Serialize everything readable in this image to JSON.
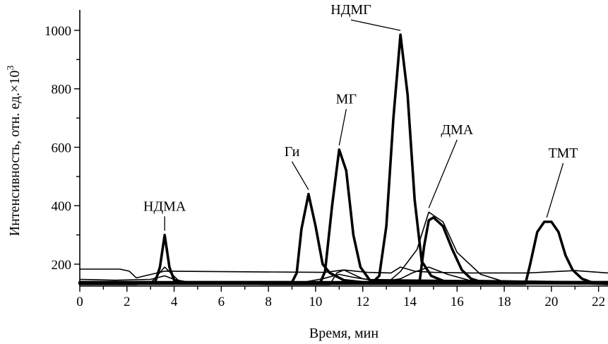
{
  "chart_data": {
    "type": "line",
    "title": "",
    "xlabel": "Время, мин",
    "ylabel": "Интенсивность, отн. ед.×10",
    "ylabel_superscript": "3",
    "xlim": [
      0,
      22.4
    ],
    "ylim": [
      125,
      1070
    ],
    "x_ticks": [
      0,
      2,
      4,
      6,
      8,
      10,
      12,
      14,
      16,
      18,
      20,
      22
    ],
    "x_tick_labels": [
      "0",
      "2",
      "4",
      "6",
      "8",
      "10",
      "12",
      "14",
      "16",
      "18",
      "20",
      "22"
    ],
    "y_ticks": [
      200,
      400,
      600,
      800,
      1000
    ],
    "y_tick_labels": [
      "200",
      "400",
      "600",
      "800",
      "1000"
    ],
    "grid": false,
    "legend": "none",
    "series": [
      {
        "x": [
          0,
          1.7,
          2.1,
          2.4,
          3.6,
          10.4,
          11.2,
          12.2,
          13.2,
          13.6,
          14.2,
          15.0,
          16.5,
          19.0,
          21.0,
          22.4
        ],
        "y": [
          183,
          183,
          176,
          153,
          176,
          172,
          180,
          172,
          170,
          190,
          176,
          172,
          170,
          170,
          178,
          170
        ],
        "weight": "thin"
      },
      {
        "x": [
          0,
          2.4,
          3.0,
          3.6,
          4.3,
          8.0,
          10.6,
          10.9,
          11.2,
          12.0,
          13.1,
          13.6,
          14.3,
          14.8,
          15.4,
          16.0,
          17.0,
          18.0,
          22.4
        ],
        "y": [
          130,
          130,
          135,
          190,
          135,
          130,
          130,
          170,
          180,
          150,
          140,
          175,
          250,
          378,
          345,
          240,
          165,
          140,
          130
        ],
        "weight": "thin"
      },
      {
        "x": [
          0,
          1.5,
          3.0,
          3.6,
          4.0,
          4.5,
          9.0,
          9.6,
          10.3,
          11.0,
          11.6,
          12.4,
          13.2,
          13.6,
          14.1,
          14.8,
          15.6,
          16.5,
          22.4
        ],
        "y": [
          148,
          145,
          148,
          160,
          148,
          140,
          140,
          140,
          150,
          165,
          155,
          145,
          145,
          150,
          170,
          190,
          165,
          145,
          138
        ],
        "weight": "thin"
      },
      {
        "x": [
          0,
          3.0,
          3.2,
          3.4,
          3.6,
          3.8,
          4.0,
          4.3,
          22.4
        ],
        "y": [
          138,
          138,
          140,
          190,
          300,
          190,
          145,
          138,
          138
        ],
        "weight": "bold"
      },
      {
        "x": [
          0,
          9.0,
          9.2,
          9.4,
          9.7,
          10.0,
          10.3,
          10.6,
          11.2,
          12.0,
          22.4
        ],
        "y": [
          138,
          138,
          170,
          320,
          440,
          330,
          200,
          170,
          145,
          138,
          138
        ],
        "weight": "bold"
      },
      {
        "x": [
          0,
          10.2,
          10.4,
          10.7,
          11.0,
          11.3,
          11.6,
          11.9,
          12.3,
          22.4
        ],
        "y": [
          137,
          137,
          175,
          400,
          592,
          520,
          300,
          190,
          145,
          137
        ],
        "weight": "bold"
      },
      {
        "x": [
          0,
          12.4,
          12.7,
          13.0,
          13.3,
          13.6,
          13.9,
          14.2,
          14.5,
          14.9,
          15.5,
          16.0,
          22.4
        ],
        "y": [
          136,
          136,
          160,
          330,
          700,
          985,
          780,
          420,
          210,
          160,
          140,
          136,
          136
        ],
        "weight": "bold"
      },
      {
        "x": [
          0,
          14.4,
          14.6,
          14.8,
          15.0,
          15.4,
          15.8,
          16.2,
          16.6,
          17.0,
          17.5,
          22.4
        ],
        "y": [
          134,
          134,
          260,
          350,
          360,
          330,
          250,
          180,
          150,
          140,
          135,
          134
        ],
        "weight": "bold"
      },
      {
        "x": [
          0,
          18.9,
          19.1,
          19.4,
          19.7,
          20.0,
          20.3,
          20.6,
          20.9,
          21.3,
          21.7,
          22.4
        ],
        "y": [
          133,
          133,
          200,
          310,
          345,
          345,
          310,
          230,
          180,
          150,
          138,
          133
        ],
        "weight": "bold"
      }
    ],
    "annotations": [
      {
        "label": "НДМА",
        "x": 3.6,
        "y": 300,
        "label_x": 3.6,
        "label_y": 383
      },
      {
        "label": "Ги",
        "x": 9.7,
        "y": 440,
        "label_x": 9.0,
        "label_y": 570
      },
      {
        "label": "МГ",
        "x": 11.0,
        "y": 592,
        "label_x": 11.3,
        "label_y": 750
      },
      {
        "label": "НДМГ",
        "x": 13.6,
        "y": 985,
        "label_x": 11.5,
        "label_y": 1055
      },
      {
        "label": "ДМА",
        "x": 14.8,
        "y": 378,
        "label_x": 16.0,
        "label_y": 645
      },
      {
        "label": "ТМТ",
        "x": 19.8,
        "y": 345,
        "label_x": 20.5,
        "label_y": 565
      }
    ]
  }
}
